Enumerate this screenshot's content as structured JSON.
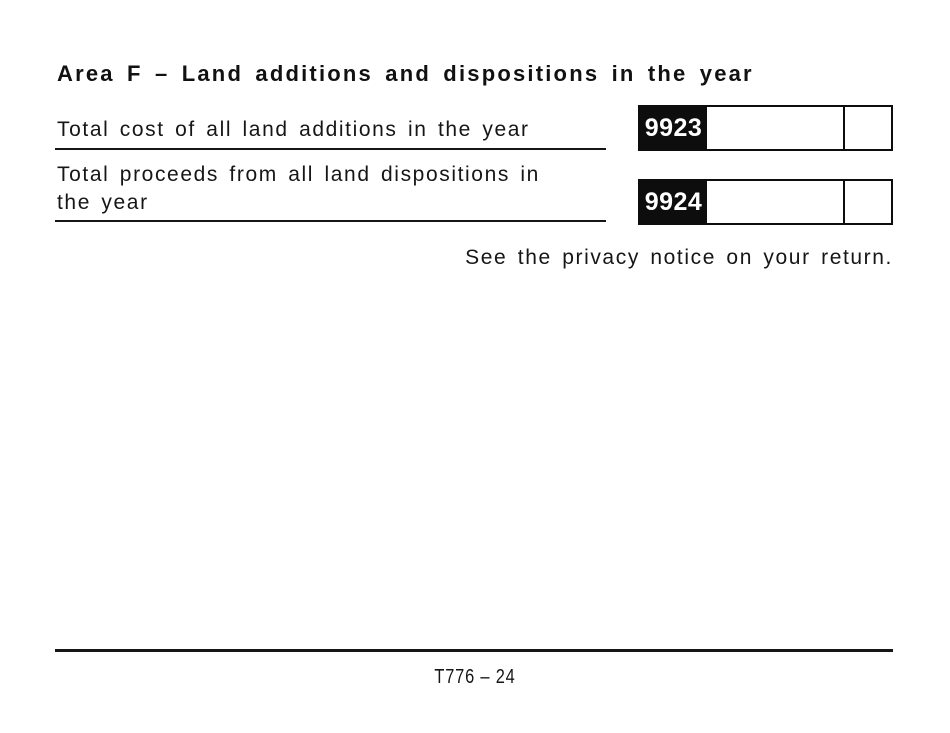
{
  "section": {
    "title": "Area F – Land additions and dispositions in the year",
    "privacy_notice": "See the privacy notice on your return.",
    "footer_code": "T776 – 24"
  },
  "rows": [
    {
      "label": "Total cost of all land additions in the year",
      "code": "9923",
      "amount_value": "",
      "cents_value": ""
    },
    {
      "label": "Total proceeds from all land dispositions in\nthe year",
      "code": "9924",
      "amount_value": "",
      "cents_value": ""
    }
  ]
}
